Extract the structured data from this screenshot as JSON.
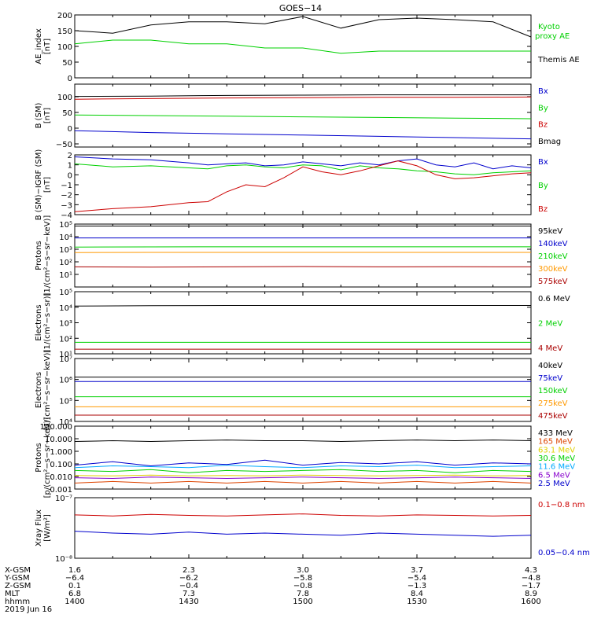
{
  "title": "GOES−14",
  "colors": {
    "black": "#000000",
    "green": "#00d000",
    "blue": "#0000cc",
    "red": "#cc0000",
    "orange": "#ff9900",
    "darkred": "#aa0000",
    "yellow": "#e0d000",
    "cyan": "#00aaff",
    "purple": "#8800cc",
    "orangered": "#dd4400"
  },
  "x_axis": {
    "range": [
      "14:00",
      "16:00"
    ],
    "row_labels": [
      "X-GSM",
      "Y-GSM",
      "Z-GSM",
      "MLT",
      "hhmm"
    ],
    "columns": [
      [
        "1.6",
        "−6.4",
        "0.1",
        "6.8",
        "1400"
      ],
      [
        "2.3",
        "−6.2",
        "−0.4",
        "7.3",
        "1430"
      ],
      [
        "3.0",
        "−5.8",
        "−0.8",
        "7.8",
        "1500"
      ],
      [
        "3.7",
        "−5.4",
        "−1.3",
        "8.4",
        "1530"
      ],
      [
        "4.3",
        "−4.8",
        "−1.7",
        "8.9",
        "1600"
      ]
    ],
    "date": "2019 Jun 16"
  },
  "chart_data": [
    {
      "type": "line",
      "ylabel": [
        "AE_index",
        "[nT]"
      ],
      "ylim": [
        0,
        200
      ],
      "yticks": [
        0,
        50,
        100,
        150,
        200
      ],
      "ytick_labels": [
        "0",
        "50",
        "100",
        "150",
        "200"
      ],
      "x": [
        0,
        10,
        20,
        30,
        40,
        50,
        60,
        70,
        80,
        90,
        100,
        110,
        120
      ],
      "series": [
        {
          "name": "Kyoto proxy AE",
          "color": "#00d000",
          "values": [
            108,
            120,
            120,
            108,
            108,
            95,
            95,
            78,
            85,
            85,
            85,
            85,
            85
          ]
        },
        {
          "name": "Themis AE",
          "color": "#000000",
          "values": [
            150,
            142,
            168,
            178,
            178,
            172,
            195,
            158,
            185,
            190,
            185,
            178,
            130
          ]
        }
      ],
      "legend_layout": [
        [
          "Kyoto",
          "proxy AE"
        ],
        [
          "Themis AE"
        ]
      ]
    },
    {
      "type": "line",
      "ylabel": [
        "B (SM)",
        "[nT]"
      ],
      "ylim": [
        -60,
        140
      ],
      "yticks": [
        -50,
        0,
        50,
        100
      ],
      "ytick_labels": [
        "−50",
        "0",
        "50",
        "100"
      ],
      "x": [
        0,
        20,
        40,
        60,
        80,
        100,
        120
      ],
      "series": [
        {
          "name": "Bx",
          "color": "#0000cc",
          "values": [
            -8,
            -14,
            -18,
            -22,
            -26,
            -30,
            -34
          ]
        },
        {
          "name": "By",
          "color": "#00d000",
          "values": [
            42,
            40,
            38,
            36,
            34,
            32,
            30
          ]
        },
        {
          "name": "Bz",
          "color": "#cc0000",
          "values": [
            92,
            94,
            96,
            97,
            98,
            98,
            99
          ]
        },
        {
          "name": "Bmag",
          "color": "#000000",
          "values": [
            101,
            102,
            104,
            105,
            106,
            106,
            106
          ]
        }
      ]
    },
    {
      "type": "line",
      "ylabel": [
        "B (SM)−IGRF (SM)",
        "[nT]"
      ],
      "ylim": [
        -4,
        2
      ],
      "yticks": [
        -4,
        -3,
        -2,
        -1,
        0,
        1,
        2
      ],
      "ytick_labels": [
        "−4",
        "−3",
        "−2",
        "−1",
        "0",
        "1",
        "2"
      ],
      "x": [
        0,
        10,
        20,
        30,
        35,
        40,
        45,
        50,
        55,
        60,
        65,
        70,
        75,
        80,
        85,
        90,
        95,
        100,
        105,
        110,
        115,
        120
      ],
      "series": [
        {
          "name": "Bx",
          "color": "#0000cc",
          "values": [
            1.8,
            1.6,
            1.5,
            1.2,
            1.0,
            1.1,
            1.2,
            0.9,
            1.0,
            1.3,
            1.1,
            0.9,
            1.2,
            1.0,
            1.4,
            1.6,
            1.0,
            0.8,
            1.2,
            0.6,
            0.9,
            0.7
          ]
        },
        {
          "name": "By",
          "color": "#00d000",
          "values": [
            1.1,
            0.8,
            0.9,
            0.7,
            0.6,
            0.9,
            1.0,
            0.8,
            0.7,
            1.0,
            0.9,
            0.5,
            0.9,
            0.7,
            0.6,
            0.4,
            0.3,
            0.1,
            0.0,
            0.2,
            0.3,
            0.4
          ]
        },
        {
          "name": "Bz",
          "color": "#cc0000",
          "values": [
            -3.7,
            -3.4,
            -3.2,
            -2.8,
            -2.7,
            -1.7,
            -1.0,
            -1.2,
            -0.3,
            0.8,
            0.3,
            0.0,
            0.4,
            0.9,
            1.4,
            0.9,
            0.0,
            -0.4,
            -0.3,
            -0.1,
            0.1,
            0.2
          ]
        }
      ]
    },
    {
      "type": "line",
      "ylabel": [
        "Protons",
        "[1/(cm²−s−sr−keV)]"
      ],
      "log": true,
      "ylim": [
        1,
        100000
      ],
      "yticks": [
        10,
        100,
        1000,
        10000,
        100000
      ],
      "ytick_labels": [
        "10¹",
        "10²",
        "10³",
        "10⁴",
        "10⁵"
      ],
      "x": [
        0,
        20,
        40,
        60,
        80,
        100,
        120
      ],
      "series": [
        {
          "name": "575keV",
          "color": "#aa0000",
          "values": [
            40,
            38,
            40,
            42,
            40,
            41,
            40
          ]
        },
        {
          "name": "300keV",
          "color": "#ff9900",
          "values": [
            550,
            560,
            560,
            560,
            560,
            560,
            560
          ]
        },
        {
          "name": "210keV",
          "color": "#00d000",
          "values": [
            1500,
            1550,
            1560,
            1560,
            1560,
            1560,
            1570
          ]
        },
        {
          "name": "140keV",
          "color": "#0000cc",
          "values": [
            8000,
            8000,
            8000,
            8000,
            8000,
            8000,
            8000
          ]
        },
        {
          "name": "95keV",
          "color": "#000000",
          "values": [
            70000,
            70000,
            70000,
            70000,
            70000,
            70000,
            70000
          ]
        }
      ]
    },
    {
      "type": "line",
      "ylabel": [
        "Electrons",
        "[1/(cm²−s−sr)]"
      ],
      "log": true,
      "ylim": [
        10,
        100000
      ],
      "yticks": [
        10,
        100,
        1000,
        10000,
        100000
      ],
      "ytick_labels": [
        "10¹",
        "10²",
        "10³",
        "10⁴",
        "10⁵"
      ],
      "x": [
        0,
        20,
        40,
        60,
        80,
        100,
        120
      ],
      "series": [
        {
          "name": "4 MeV",
          "color": "#aa0000",
          "values": [
            20,
            20,
            20,
            20,
            20,
            20,
            20
          ]
        },
        {
          "name": "2 MeV",
          "color": "#00d000",
          "values": [
            55,
            55,
            55,
            55,
            55,
            55,
            55
          ]
        },
        {
          "name": "0.6 MeV",
          "color": "#000000",
          "values": [
            12000,
            12500,
            13000,
            13000,
            13000,
            13000,
            13000
          ]
        }
      ]
    },
    {
      "type": "line",
      "ylabel": [
        "Electrons",
        "[1/(cm²−s−sr−keV)]"
      ],
      "log": true,
      "ylim": [
        10000,
        10000000
      ],
      "yticks": [
        10000,
        100000,
        1000000,
        10000000
      ],
      "ytick_labels": [
        "10⁴",
        "10⁵",
        "10⁶",
        "10⁷"
      ],
      "x": [
        0,
        20,
        40,
        60,
        80,
        100,
        120
      ],
      "series": [
        {
          "name": "475keV",
          "color": "#aa0000",
          "values": [
            20000,
            20000,
            20000,
            20000,
            20000,
            20000,
            20000
          ]
        },
        {
          "name": "275keV",
          "color": "#ff9900",
          "values": [
            50000,
            50000,
            50000,
            50000,
            50000,
            50000,
            50000
          ]
        },
        {
          "name": "150keV",
          "color": "#00d000",
          "values": [
            150000,
            150000,
            150000,
            150000,
            150000,
            150000,
            150000
          ]
        },
        {
          "name": "75keV",
          "color": "#0000cc",
          "values": [
            800000,
            800000,
            800000,
            800000,
            800000,
            800000,
            800000
          ]
        },
        {
          "name": "40keV",
          "color": "#000000",
          "values": [
            1300000,
            1300000,
            1300000,
            1300000,
            1300000,
            1300000,
            1300000
          ]
        }
      ]
    },
    {
      "type": "line",
      "ylabel": [
        "Protons",
        "[p/(cm²−s−sr−keV)]"
      ],
      "log": true,
      "ylim": [
        0.001,
        100
      ],
      "yticks": [
        0.001,
        0.01,
        0.1,
        1,
        10,
        100
      ],
      "ytick_labels": [
        "0.001",
        "0.010",
        "0.100",
        "1.000",
        "10.000",
        "100.000"
      ],
      "x": [
        0,
        10,
        20,
        30,
        40,
        50,
        60,
        70,
        80,
        90,
        100,
        110,
        120
      ],
      "series": [
        {
          "name": "433 MeV",
          "color": "#000000",
          "values": [
            6,
            7,
            6,
            7,
            8,
            7,
            7,
            6,
            7,
            8,
            7,
            8,
            7
          ]
        },
        {
          "name": "165 MeV",
          "color": "#dd4400",
          "values": [
            0.003,
            0.004,
            0.003,
            0.004,
            0.003,
            0.004,
            0.003,
            0.004,
            0.003,
            0.004,
            0.003,
            0.004,
            0.003
          ]
        },
        {
          "name": "63.1 MeV",
          "color": "#e0d000",
          "values": [
            0.012,
            0.011,
            0.013,
            0.011,
            0.012,
            0.011,
            0.013,
            0.012,
            0.011,
            0.012,
            0.013,
            0.011,
            0.012
          ]
        },
        {
          "name": "30.6 MeV",
          "color": "#00d000",
          "values": [
            0.03,
            0.025,
            0.035,
            0.02,
            0.03,
            0.025,
            0.03,
            0.035,
            0.025,
            0.03,
            0.02,
            0.03,
            0.025
          ]
        },
        {
          "name": "11.6 MeV",
          "color": "#00aaff",
          "values": [
            0.05,
            0.07,
            0.06,
            0.05,
            0.08,
            0.06,
            0.05,
            0.07,
            0.06,
            0.08,
            0.05,
            0.06,
            0.07
          ]
        },
        {
          "name": "6.5 MeV",
          "color": "#8800cc",
          "values": [
            0.008,
            0.007,
            0.009,
            0.008,
            0.007,
            0.008,
            0.009,
            0.008,
            0.007,
            0.008,
            0.009,
            0.008,
            0.007
          ]
        },
        {
          "name": "2.5 MeV",
          "color": "#0000cc",
          "values": [
            0.08,
            0.15,
            0.07,
            0.12,
            0.09,
            0.2,
            0.08,
            0.13,
            0.1,
            0.15,
            0.08,
            0.12,
            0.1
          ]
        }
      ]
    },
    {
      "type": "line",
      "ylabel": [
        "Xray Flux",
        "[W/m²]"
      ],
      "log": true,
      "ylim": [
        1e-08,
        1e-07
      ],
      "yticks": [
        1e-08,
        1e-07
      ],
      "ytick_labels": [
        "10⁻⁸",
        "10⁻⁷"
      ],
      "x": [
        0,
        10,
        20,
        30,
        40,
        50,
        60,
        70,
        80,
        90,
        100,
        110,
        120
      ],
      "series": [
        {
          "name": "0.1−0.8 nm",
          "color": "#cc0000",
          "values": [
            5.2e-08,
            5e-08,
            5.3e-08,
            5.1e-08,
            5e-08,
            5.2e-08,
            5.4e-08,
            5.1e-08,
            5e-08,
            5.2e-08,
            5.1e-08,
            5e-08,
            5.1e-08
          ]
        },
        {
          "name": "0.05−0.4 nm",
          "color": "#0000cc",
          "values": [
            2.8e-08,
            2.6e-08,
            2.5e-08,
            2.7e-08,
            2.5e-08,
            2.6e-08,
            2.5e-08,
            2.4e-08,
            2.6e-08,
            2.5e-08,
            2.4e-08,
            2.3e-08,
            2.4e-08
          ]
        }
      ]
    }
  ]
}
